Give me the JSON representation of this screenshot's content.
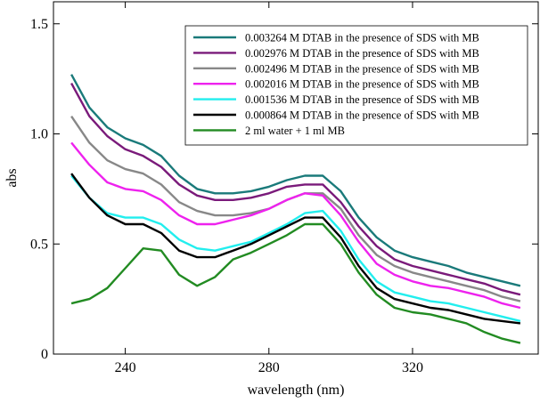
{
  "chart_data": {
    "type": "line",
    "xlabel": "wavelength (nm)",
    "ylabel": "abs",
    "xlim": [
      220,
      355
    ],
    "ylim": [
      0,
      1.6
    ],
    "x_ticks": [
      240,
      280,
      320
    ],
    "x_tick_labels": [
      "240",
      "280",
      "320"
    ],
    "y_ticks": [
      0,
      0.5,
      1.0,
      1.5
    ],
    "y_tick_labels": [
      "0",
      "0.5",
      "1.0",
      "1.5"
    ],
    "legend_position": "top-right",
    "grid": false,
    "x": [
      225,
      230,
      235,
      240,
      245,
      250,
      255,
      260,
      265,
      270,
      275,
      280,
      285,
      290,
      295,
      300,
      305,
      310,
      315,
      320,
      325,
      330,
      335,
      340,
      345,
      350
    ],
    "series": [
      {
        "name": "0.003264 M DTAB in the presence of SDS with MB",
        "color": "#1a7a7a",
        "values": [
          1.27,
          1.12,
          1.03,
          0.98,
          0.95,
          0.9,
          0.81,
          0.75,
          0.73,
          0.73,
          0.74,
          0.76,
          0.79,
          0.81,
          0.81,
          0.74,
          0.62,
          0.53,
          0.47,
          0.44,
          0.42,
          0.4,
          0.37,
          0.35,
          0.33,
          0.31
        ]
      },
      {
        "name": "0.002976 M DTAB in the presence of SDS with MB",
        "color": "#7a1a7a",
        "values": [
          1.23,
          1.08,
          0.99,
          0.93,
          0.9,
          0.85,
          0.77,
          0.72,
          0.7,
          0.7,
          0.71,
          0.73,
          0.76,
          0.77,
          0.77,
          0.69,
          0.58,
          0.49,
          0.43,
          0.4,
          0.38,
          0.36,
          0.34,
          0.32,
          0.29,
          0.27
        ]
      },
      {
        "name": "0.002496 M DTAB in the presence of SDS with MB",
        "color": "#888888",
        "values": [
          1.08,
          0.96,
          0.88,
          0.84,
          0.82,
          0.77,
          0.69,
          0.65,
          0.63,
          0.63,
          0.64,
          0.66,
          0.7,
          0.73,
          0.73,
          0.66,
          0.54,
          0.45,
          0.4,
          0.37,
          0.35,
          0.33,
          0.31,
          0.29,
          0.26,
          0.24
        ]
      },
      {
        "name": "0.002016 M DTAB in the presence of SDS with MB",
        "color": "#ee22ee",
        "values": [
          0.96,
          0.86,
          0.78,
          0.75,
          0.74,
          0.7,
          0.63,
          0.59,
          0.59,
          0.61,
          0.63,
          0.66,
          0.7,
          0.73,
          0.72,
          0.63,
          0.51,
          0.41,
          0.36,
          0.33,
          0.31,
          0.3,
          0.28,
          0.26,
          0.23,
          0.21
        ]
      },
      {
        "name": "0.001536 M DTAB in the presence of SDS with MB",
        "color": "#22eeee",
        "values": [
          0.81,
          0.71,
          0.64,
          0.62,
          0.62,
          0.59,
          0.52,
          0.48,
          0.47,
          0.49,
          0.51,
          0.55,
          0.59,
          0.64,
          0.65,
          0.56,
          0.43,
          0.33,
          0.28,
          0.26,
          0.24,
          0.23,
          0.21,
          0.19,
          0.17,
          0.15
        ]
      },
      {
        "name": "0.000864 M DTAB in the presence of SDS with MB",
        "color": "#000000",
        "values": [
          0.82,
          0.71,
          0.63,
          0.59,
          0.59,
          0.55,
          0.47,
          0.44,
          0.44,
          0.47,
          0.5,
          0.54,
          0.58,
          0.62,
          0.62,
          0.53,
          0.4,
          0.3,
          0.25,
          0.23,
          0.21,
          0.2,
          0.18,
          0.16,
          0.15,
          0.14
        ]
      },
      {
        "name": "2 ml water + 1 ml MB",
        "color": "#228b22",
        "values": [
          0.23,
          0.25,
          0.3,
          0.39,
          0.48,
          0.47,
          0.36,
          0.31,
          0.35,
          0.43,
          0.46,
          0.5,
          0.54,
          0.59,
          0.59,
          0.5,
          0.37,
          0.27,
          0.21,
          0.19,
          0.18,
          0.16,
          0.14,
          0.1,
          0.07,
          0.05
        ]
      }
    ]
  }
}
